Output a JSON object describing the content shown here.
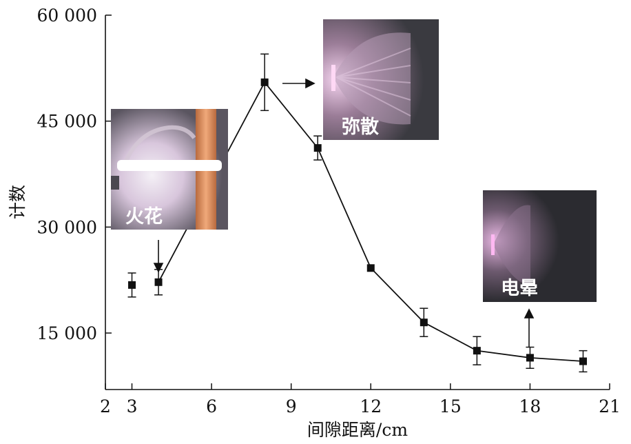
{
  "chart_data": {
    "type": "scatter",
    "title": "",
    "xlabel": "间隙距离/cm",
    "ylabel": "计数",
    "xlim": [
      2,
      21
    ],
    "ylim": [
      7000,
      60000
    ],
    "xticks": [
      2,
      3,
      6,
      9,
      12,
      15,
      18,
      21
    ],
    "xtick_labels": [
      "2",
      "3",
      "6",
      "9",
      "12",
      "15",
      "18",
      "21"
    ],
    "yticks": [
      15000,
      30000,
      45000,
      60000
    ],
    "ytick_labels": [
      "15 000",
      "30 000",
      "45 000",
      "60 000"
    ],
    "grid": false,
    "legend": "none",
    "series": [
      {
        "marker": "square",
        "connected": "from x=4 onward",
        "x": [
          3,
          4,
          8,
          10,
          12,
          14,
          16,
          18,
          20
        ],
        "y": [
          21800,
          22200,
          50500,
          41200,
          24200,
          16500,
          12500,
          11500,
          11000
        ],
        "error": [
          1700,
          1800,
          4000,
          1700,
          0,
          2000,
          2000,
          1500,
          1500
        ]
      }
    ],
    "insets": [
      {
        "label": "火花",
        "name": "spark",
        "arrow": "down"
      },
      {
        "label": "弥散",
        "name": "diffuse",
        "arrow": "right"
      },
      {
        "label": "电晕",
        "name": "corona",
        "arrow": "up"
      }
    ],
    "colors": {
      "line": "#111111",
      "marker": "#111111",
      "inset_bg": "#2a2a2a",
      "glow": "#e9c6e6",
      "electrode": "#d9956a"
    }
  }
}
